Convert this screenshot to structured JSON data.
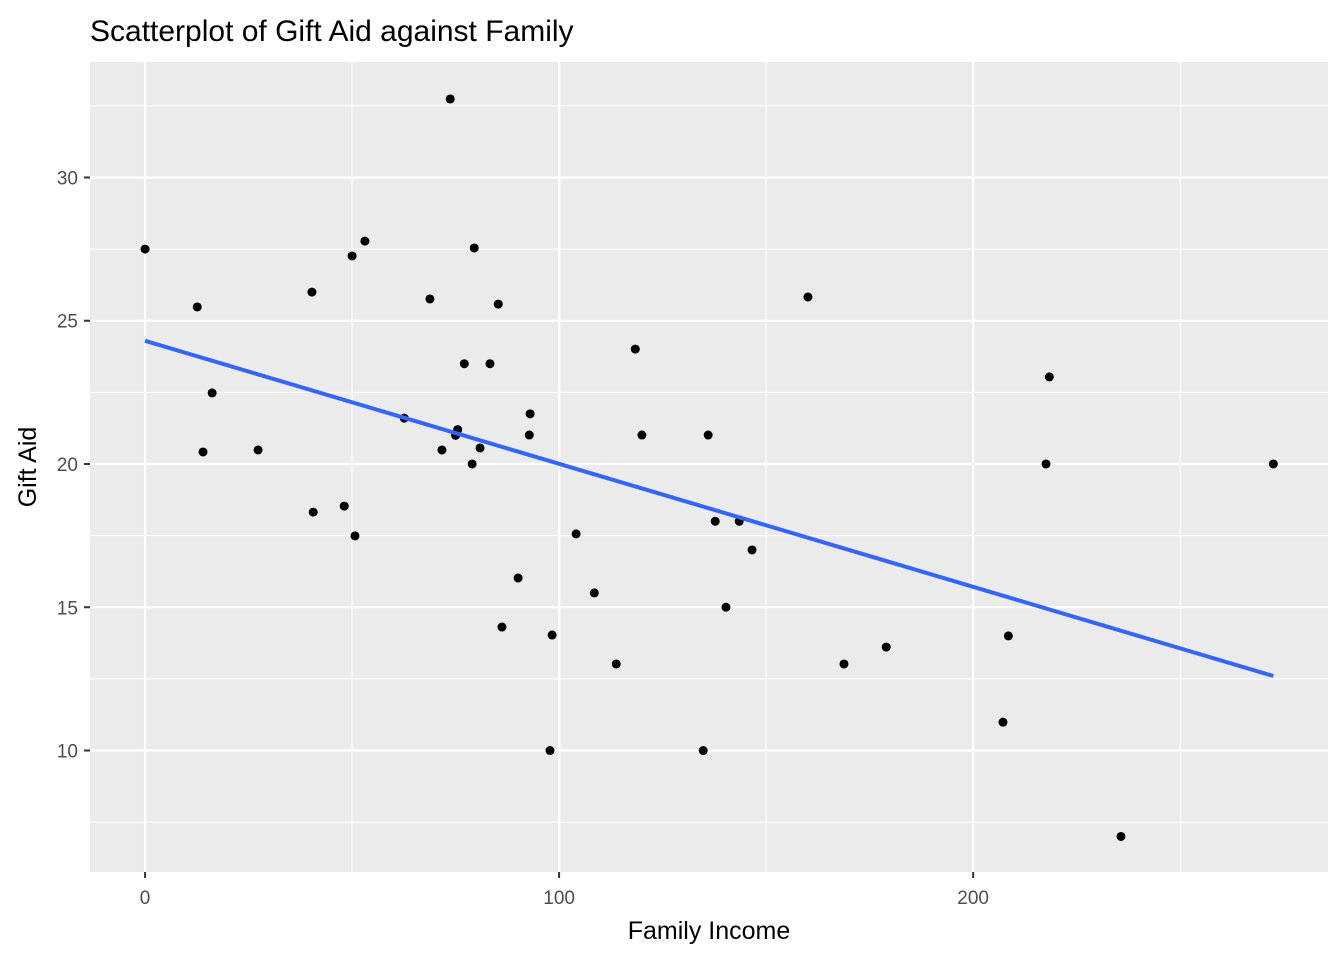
{
  "chart_data": {
    "type": "scatter",
    "title": "Scatterplot of Gift Aid against Family",
    "xlabel": "Family Income",
    "ylabel": "Gift Aid",
    "xlim": [
      -13.3,
      285.7
    ],
    "ylim": [
      5.76,
      34.03
    ],
    "xticks": [
      0,
      100,
      200
    ],
    "yticks": [
      10,
      15,
      20,
      25,
      30
    ],
    "grid": true,
    "points": [
      [
        0,
        27.5
      ],
      [
        12.6,
        25.48
      ],
      [
        16.2,
        22.48
      ],
      [
        14.0,
        20.42
      ],
      [
        27.3,
        20.49
      ],
      [
        40.3,
        26.0
      ],
      [
        40.6,
        18.32
      ],
      [
        48.1,
        18.53
      ],
      [
        50.0,
        27.26
      ],
      [
        53.1,
        27.78
      ],
      [
        50.7,
        17.49
      ],
      [
        62.6,
        21.6
      ],
      [
        68.8,
        25.76
      ],
      [
        71.7,
        20.49
      ],
      [
        73.7,
        32.74
      ],
      [
        75.0,
        21.0
      ],
      [
        75.5,
        21.2
      ],
      [
        77.1,
        23.5
      ],
      [
        79.5,
        27.54
      ],
      [
        79.0,
        20.0
      ],
      [
        80.9,
        20.56
      ],
      [
        83.3,
        23.5
      ],
      [
        85.3,
        25.58
      ],
      [
        86.2,
        14.31
      ],
      [
        90.1,
        16.02
      ],
      [
        93.0,
        21.75
      ],
      [
        92.8,
        21.01
      ],
      [
        97.8,
        10.0
      ],
      [
        98.3,
        14.03
      ],
      [
        104.1,
        17.56
      ],
      [
        108.5,
        15.5
      ],
      [
        113.8,
        13.02
      ],
      [
        118.4,
        24.01
      ],
      [
        120.0,
        21.01
      ],
      [
        134.8,
        10.0
      ],
      [
        136.0,
        21.01
      ],
      [
        137.7,
        18.0
      ],
      [
        140.3,
        15.0
      ],
      [
        143.5,
        18.0
      ],
      [
        146.6,
        17.0
      ],
      [
        160.1,
        25.83
      ],
      [
        168.8,
        13.02
      ],
      [
        179.0,
        13.61
      ],
      [
        207.2,
        10.99
      ],
      [
        208.5,
        14.0
      ],
      [
        218.4,
        23.04
      ],
      [
        217.6,
        20.0
      ],
      [
        235.7,
        7.0
      ],
      [
        272.5,
        20.0
      ]
    ],
    "fit_line": {
      "x": [
        0,
        272.5
      ],
      "y": [
        24.3,
        12.6
      ],
      "color": "#3366FF"
    },
    "point_color": "#000000",
    "panel_color": "#EBEBEB"
  }
}
